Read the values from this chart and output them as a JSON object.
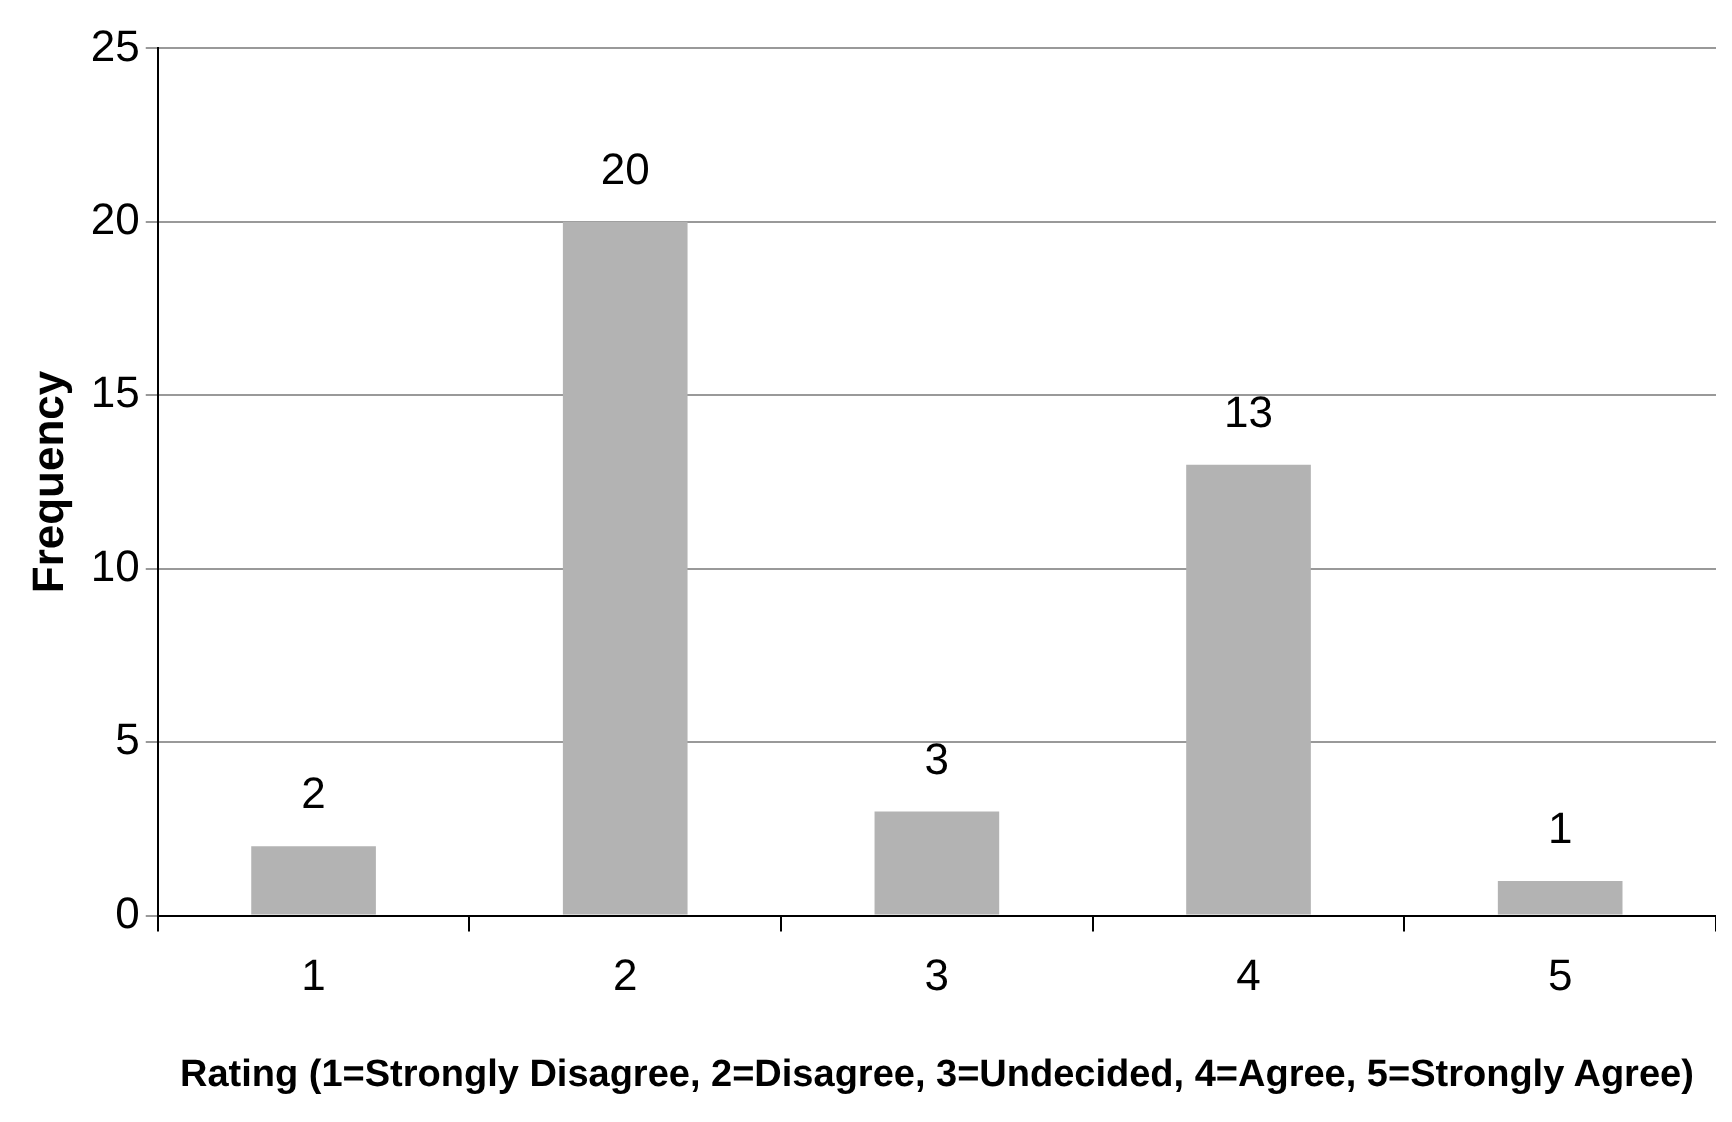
{
  "chart_data": {
    "type": "bar",
    "xlabel": "Rating (1=Strongly Disagree, 2=Disagree, 3=Undecided, 4=Agree, 5=Strongly Agree)",
    "ylabel": "Frequency",
    "categories": [
      "1",
      "2",
      "3",
      "4",
      "5"
    ],
    "values": [
      2,
      20,
      3,
      13,
      1
    ],
    "color": "#b3b3b3",
    "ylim": [
      0,
      25
    ],
    "yticks": [
      0,
      5,
      10,
      15,
      20,
      25
    ],
    "grid": "y",
    "data_labels": true,
    "legend": false
  }
}
